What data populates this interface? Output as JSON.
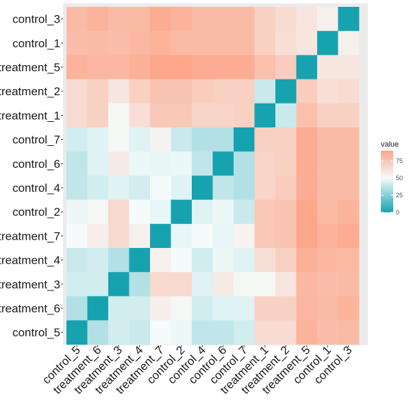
{
  "chart_data": {
    "type": "heatmap",
    "title": "",
    "xlabel": "",
    "ylabel": "",
    "x_categories": [
      "control_5",
      "treatment_6",
      "treatment_3",
      "treatment_4",
      "treatment_7",
      "control_2",
      "control_4",
      "control_6",
      "control_7",
      "treatment_1",
      "treatment_2",
      "treatment_5",
      "control_1",
      "control_3"
    ],
    "y_categories_top_to_bottom": [
      "control_3",
      "control_1",
      "treatment_5",
      "treatment_2",
      "treatment_1",
      "control_7",
      "control_6",
      "control_4",
      "control_2",
      "treatment_7",
      "treatment_4",
      "treatment_3",
      "treatment_6",
      "control_5"
    ],
    "rows": [
      {
        "label": "control_3",
        "values": [
          80,
          84,
          80,
          81,
          87,
          84,
          80,
          80,
          80,
          70,
          65,
          60,
          55,
          0
        ]
      },
      {
        "label": "control_1",
        "values": [
          79,
          80,
          79,
          82,
          84,
          81,
          80,
          80,
          80,
          70,
          63,
          60,
          0,
          55
        ]
      },
      {
        "label": "treatment_5",
        "values": [
          84,
          82,
          82,
          85,
          90,
          90,
          87,
          87,
          87,
          78,
          72,
          0,
          60,
          60
        ]
      },
      {
        "label": "treatment_2",
        "values": [
          65,
          70,
          60,
          70,
          76,
          76,
          72,
          70,
          70,
          40,
          0,
          72,
          63,
          65
        ]
      },
      {
        "label": "treatment_1",
        "values": [
          65,
          70,
          52,
          63,
          74,
          74,
          68,
          68,
          70,
          0,
          40,
          78,
          70,
          70
        ]
      },
      {
        "label": "control_7",
        "values": [
          42,
          45,
          52,
          45,
          54,
          40,
          35,
          35,
          0,
          70,
          70,
          87,
          80,
          80
        ]
      },
      {
        "label": "control_6",
        "values": [
          38,
          45,
          58,
          48,
          47,
          48,
          38,
          0,
          35,
          68,
          70,
          87,
          80,
          80
        ]
      },
      {
        "label": "control_4",
        "values": [
          38,
          42,
          45,
          42,
          50,
          45,
          0,
          38,
          35,
          68,
          72,
          87,
          80,
          80
        ]
      },
      {
        "label": "control_2",
        "values": [
          48,
          52,
          66,
          50,
          47,
          0,
          45,
          48,
          40,
          74,
          76,
          90,
          81,
          84
        ]
      },
      {
        "label": "treatment_7",
        "values": [
          50,
          56,
          66,
          55,
          0,
          47,
          50,
          47,
          54,
          74,
          76,
          90,
          84,
          87
        ]
      },
      {
        "label": "treatment_4",
        "values": [
          40,
          42,
          35,
          0,
          55,
          50,
          42,
          48,
          45,
          63,
          70,
          85,
          82,
          81
        ]
      },
      {
        "label": "treatment_3",
        "values": [
          42,
          42,
          0,
          35,
          66,
          66,
          45,
          58,
          52,
          52,
          60,
          82,
          79,
          80
        ]
      },
      {
        "label": "treatment_6",
        "values": [
          35,
          0,
          42,
          42,
          56,
          52,
          42,
          45,
          45,
          70,
          70,
          82,
          80,
          84
        ]
      },
      {
        "label": "control_5",
        "values": [
          0,
          35,
          42,
          40,
          50,
          48,
          38,
          38,
          42,
          65,
          65,
          84,
          79,
          80
        ]
      }
    ],
    "legend": {
      "title": "value",
      "ticks": [
        0,
        25,
        50,
        75
      ],
      "position": "right",
      "low_color": "#17a2b0",
      "mid_color": "#f5fbfb",
      "high_color": "#fca68a",
      "midpoint": 50,
      "domain": [
        0,
        90
      ]
    },
    "grid": false
  }
}
